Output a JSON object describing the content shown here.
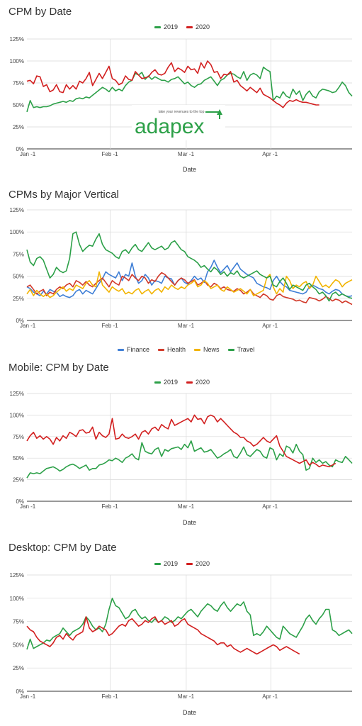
{
  "charts_meta": {
    "colors": {
      "2019": "#2ca048",
      "2020": "#d21f1f",
      "Finance": "#3f7fd6",
      "Health": "#d23a2a",
      "News": "#f2b400",
      "Travel": "#2ca048"
    }
  },
  "logo": {
    "text": "adapex",
    "tagline": "take your revenues to the top"
  },
  "chart_data": [
    {
      "type": "line",
      "title": "CPM by Date",
      "xlabel": "Date",
      "ylabel": "",
      "ylim": [
        0,
        125
      ],
      "yticks": [
        "0%",
        "25%",
        "50%",
        "75%",
        "100%",
        "125%"
      ],
      "xticks": [
        "Jan -1",
        "Feb -1",
        "Mar -1",
        "Apr -1"
      ],
      "legend_position": "top-center",
      "grid": true,
      "series": [
        {
          "name": "2019",
          "color": "#2ca048",
          "values": [
            42,
            55,
            47,
            48,
            47,
            48,
            48,
            49,
            51,
            52,
            53,
            54,
            53,
            55,
            54,
            57,
            58,
            57,
            59,
            58,
            61,
            64,
            67,
            70,
            68,
            65,
            70,
            66,
            68,
            66,
            72,
            76,
            78,
            86,
            84,
            87,
            79,
            83,
            79,
            82,
            80,
            78,
            78,
            76,
            79,
            80,
            82,
            78,
            74,
            76,
            72,
            70,
            73,
            74,
            78,
            80,
            82,
            77,
            72,
            78,
            80,
            84,
            86,
            85,
            82,
            80,
            88,
            78,
            84,
            86,
            84,
            80,
            93,
            90,
            88,
            55,
            60,
            58,
            65,
            60,
            58,
            68,
            62,
            66,
            55,
            62,
            66,
            60,
            58,
            65,
            68,
            67,
            66,
            64,
            65,
            70,
            76,
            72,
            64,
            60
          ]
        },
        {
          "name": "2020",
          "color": "#d21f1f",
          "values": [
            77,
            78,
            74,
            83,
            82,
            71,
            73,
            65,
            67,
            73,
            65,
            64,
            73,
            68,
            72,
            68,
            77,
            75,
            80,
            87,
            72,
            79,
            86,
            80,
            87,
            94,
            80,
            78,
            73,
            75,
            83,
            79,
            78,
            88,
            84,
            80,
            81,
            82,
            87,
            90,
            85,
            84,
            86,
            93,
            98,
            88,
            92,
            90,
            87,
            94,
            90,
            91,
            86,
            98,
            92,
            100,
            96,
            87,
            88,
            80,
            85,
            84,
            88,
            76,
            78,
            72,
            69,
            66,
            70,
            67,
            64,
            69,
            62,
            60,
            58,
            55,
            52,
            50,
            47,
            52,
            55,
            54,
            56,
            54,
            53,
            53,
            52,
            51,
            50,
            50
          ]
        }
      ]
    },
    {
      "type": "line",
      "title": "CPMs by Major Vertical",
      "xlabel": "",
      "ylabel": "",
      "ylim": [
        0,
        125
      ],
      "yticks": [
        "0%",
        "25%",
        "50%",
        "75%",
        "100%",
        "125%"
      ],
      "xticks": [
        "Jan -1",
        "Feb -1",
        "Mar -1",
        "Apr -1"
      ],
      "legend_position": "bottom-center",
      "grid": true,
      "series": [
        {
          "name": "Finance",
          "color": "#3f7fd6",
          "values": [
            38,
            36,
            32,
            30,
            28,
            33,
            30,
            35,
            33,
            32,
            27,
            29,
            27,
            26,
            28,
            33,
            35,
            30,
            34,
            32,
            30,
            36,
            42,
            47,
            55,
            52,
            50,
            48,
            55,
            45,
            52,
            50,
            65,
            50,
            42,
            45,
            52,
            48,
            40,
            45,
            44,
            42,
            50,
            48,
            47,
            40,
            45,
            48,
            43,
            41,
            45,
            50,
            46,
            48,
            43,
            55,
            60,
            68,
            60,
            54,
            58,
            62,
            55,
            60,
            65,
            58,
            55,
            52,
            50,
            48,
            42,
            40,
            38,
            37,
            35,
            45,
            50,
            44,
            40,
            38,
            34,
            33,
            32,
            31,
            30,
            32,
            38,
            40,
            38,
            36,
            35,
            32,
            30,
            33,
            35,
            34,
            30,
            28,
            27,
            28
          ]
        },
        {
          "name": "Health",
          "color": "#d23a2a",
          "values": [
            38,
            40,
            35,
            30,
            33,
            35,
            28,
            32,
            30,
            35,
            38,
            36,
            40,
            42,
            38,
            45,
            43,
            40,
            44,
            40,
            38,
            42,
            45,
            48,
            43,
            38,
            45,
            42,
            40,
            50,
            48,
            45,
            52,
            48,
            45,
            50,
            48,
            42,
            46,
            44,
            50,
            54,
            52,
            48,
            44,
            40,
            45,
            48,
            46,
            42,
            44,
            46,
            40,
            42,
            45,
            40,
            38,
            42,
            40,
            36,
            38,
            35,
            34,
            33,
            36,
            34,
            30,
            32,
            35,
            30,
            28,
            26,
            30,
            28,
            24,
            23,
            28,
            30,
            27,
            26,
            25,
            24,
            22,
            23,
            21,
            20,
            26,
            25,
            24,
            22,
            24,
            27,
            25,
            22,
            24,
            23,
            20,
            22,
            20,
            18
          ]
        },
        {
          "name": "News",
          "color": "#f2b400",
          "values": [
            30,
            35,
            28,
            34,
            30,
            27,
            30,
            26,
            28,
            32,
            35,
            38,
            33,
            36,
            34,
            40,
            38,
            36,
            42,
            45,
            40,
            38,
            55,
            40,
            36,
            32,
            38,
            35,
            33,
            36,
            30,
            32,
            30,
            34,
            36,
            30,
            33,
            35,
            30,
            34,
            36,
            32,
            38,
            35,
            40,
            37,
            35,
            38,
            36,
            40,
            42,
            45,
            38,
            40,
            45,
            42,
            36,
            38,
            40,
            35,
            33,
            38,
            35,
            32,
            34,
            36,
            33,
            30,
            35,
            28,
            30,
            32,
            34,
            48,
            52,
            38,
            30,
            36,
            32,
            50,
            45,
            36,
            40,
            38,
            42,
            44,
            36,
            40,
            50,
            44,
            38,
            40,
            37,
            42,
            46,
            44,
            38,
            42,
            44,
            46
          ]
        },
        {
          "name": "Travel",
          "color": "#2ca048",
          "values": [
            80,
            66,
            62,
            70,
            72,
            68,
            58,
            48,
            52,
            60,
            56,
            54,
            56,
            70,
            98,
            100,
            86,
            78,
            82,
            85,
            84,
            92,
            98,
            86,
            80,
            78,
            76,
            72,
            70,
            78,
            80,
            76,
            82,
            86,
            80,
            78,
            83,
            88,
            82,
            80,
            82,
            84,
            80,
            82,
            88,
            90,
            85,
            80,
            78,
            72,
            70,
            68,
            65,
            60,
            62,
            58,
            55,
            60,
            57,
            52,
            55,
            50,
            54,
            52,
            56,
            50,
            48,
            50,
            52,
            54,
            56,
            52,
            50,
            48,
            50,
            40,
            38,
            44,
            48,
            42,
            35,
            40,
            38,
            36,
            34,
            40,
            42,
            38,
            35,
            30,
            32,
            28,
            22,
            30,
            32,
            28,
            30,
            28,
            26,
            25
          ]
        }
      ]
    },
    {
      "type": "line",
      "title": "Mobile: CPM by Date",
      "xlabel": "Date",
      "ylabel": "",
      "ylim": [
        0,
        125
      ],
      "yticks": [
        "0%",
        "25%",
        "50%",
        "75%",
        "100%",
        "125%"
      ],
      "xticks": [
        "Jan -1",
        "Feb -1",
        "Mar -1",
        "Apr -1"
      ],
      "legend_position": "top-center",
      "grid": true,
      "series": [
        {
          "name": "2019",
          "color": "#2ca048",
          "values": [
            27,
            33,
            32,
            33,
            32,
            35,
            38,
            39,
            40,
            38,
            35,
            37,
            40,
            42,
            43,
            41,
            38,
            40,
            42,
            36,
            38,
            38,
            42,
            43,
            45,
            48,
            47,
            50,
            48,
            45,
            50,
            52,
            55,
            50,
            48,
            68,
            58,
            56,
            55,
            60,
            62,
            52,
            60,
            58,
            61,
            62,
            63,
            60,
            66,
            62,
            70,
            58,
            60,
            62,
            57,
            58,
            60,
            55,
            50,
            52,
            55,
            57,
            60,
            52,
            50,
            56,
            63,
            54,
            52,
            56,
            60,
            58,
            52,
            50,
            62,
            60,
            48,
            55,
            52,
            64,
            62,
            56,
            66,
            58,
            54,
            36,
            38,
            50,
            45,
            48,
            44,
            46,
            42,
            40,
            48,
            46,
            45,
            52,
            48,
            44
          ]
        },
        {
          "name": "2020",
          "color": "#d21f1f",
          "values": [
            70,
            76,
            80,
            73,
            76,
            72,
            75,
            72,
            66,
            74,
            70,
            76,
            73,
            80,
            78,
            75,
            82,
            83,
            79,
            80,
            86,
            72,
            80,
            76,
            74,
            78,
            96,
            72,
            73,
            78,
            74,
            73,
            75,
            78,
            72,
            80,
            82,
            78,
            84,
            86,
            82,
            89,
            86,
            84,
            95,
            88,
            90,
            92,
            94,
            96,
            92,
            100,
            95,
            96,
            90,
            98,
            100,
            98,
            92,
            96,
            92,
            88,
            84,
            80,
            78,
            74,
            74,
            70,
            68,
            64,
            66,
            70,
            74,
            70,
            68,
            72,
            76,
            64,
            58,
            52,
            50,
            48,
            46,
            44,
            46,
            48,
            42,
            45,
            43,
            40,
            42,
            41,
            40,
            42,
            44
          ]
        }
      ]
    },
    {
      "type": "line",
      "title": "Desktop: CPM by Date",
      "xlabel": "Date",
      "ylabel": "",
      "ylim": [
        0,
        125
      ],
      "yticks": [
        "0%",
        "25%",
        "50%",
        "75%",
        "100%",
        "125%"
      ],
      "xticks": [
        "Jan -1",
        "Feb -1",
        "Mar -1",
        "Apr -1"
      ],
      "legend_position": "top-center",
      "grid": true,
      "series": [
        {
          "name": "2019",
          "color": "#2ca048",
          "values": [
            45,
            56,
            46,
            48,
            50,
            52,
            55,
            54,
            58,
            60,
            62,
            68,
            64,
            60,
            64,
            66,
            68,
            72,
            80,
            76,
            70,
            66,
            68,
            64,
            72,
            88,
            100,
            92,
            90,
            84,
            78,
            80,
            86,
            88,
            82,
            78,
            80,
            76,
            74,
            78,
            74,
            76,
            80,
            78,
            74,
            76,
            80,
            78,
            82,
            86,
            88,
            84,
            80,
            86,
            90,
            94,
            92,
            88,
            86,
            92,
            96,
            90,
            86,
            90,
            94,
            92,
            96,
            86,
            82,
            60,
            62,
            60,
            64,
            70,
            66,
            62,
            58,
            56,
            70,
            66,
            62,
            60,
            58,
            64,
            70,
            78,
            82,
            76,
            72,
            78,
            82,
            88,
            88,
            66,
            64,
            60,
            62,
            64,
            66,
            62
          ]
        },
        {
          "name": "2020",
          "color": "#d21f1f",
          "values": [
            70,
            66,
            64,
            58,
            54,
            52,
            50,
            48,
            52,
            58,
            60,
            56,
            62,
            58,
            55,
            60,
            62,
            64,
            80,
            68,
            64,
            66,
            70,
            68,
            66,
            60,
            62,
            66,
            70,
            72,
            70,
            76,
            78,
            74,
            70,
            72,
            76,
            74,
            78,
            80,
            74,
            76,
            72,
            74,
            76,
            70,
            72,
            76,
            78,
            72,
            70,
            68,
            66,
            62,
            60,
            58,
            56,
            54,
            50,
            52,
            52,
            48,
            50,
            46,
            44,
            42,
            44,
            46,
            44,
            42,
            40,
            42,
            44,
            46,
            48,
            50,
            48,
            44,
            46,
            48,
            46,
            44,
            42,
            40
          ]
        }
      ]
    }
  ]
}
